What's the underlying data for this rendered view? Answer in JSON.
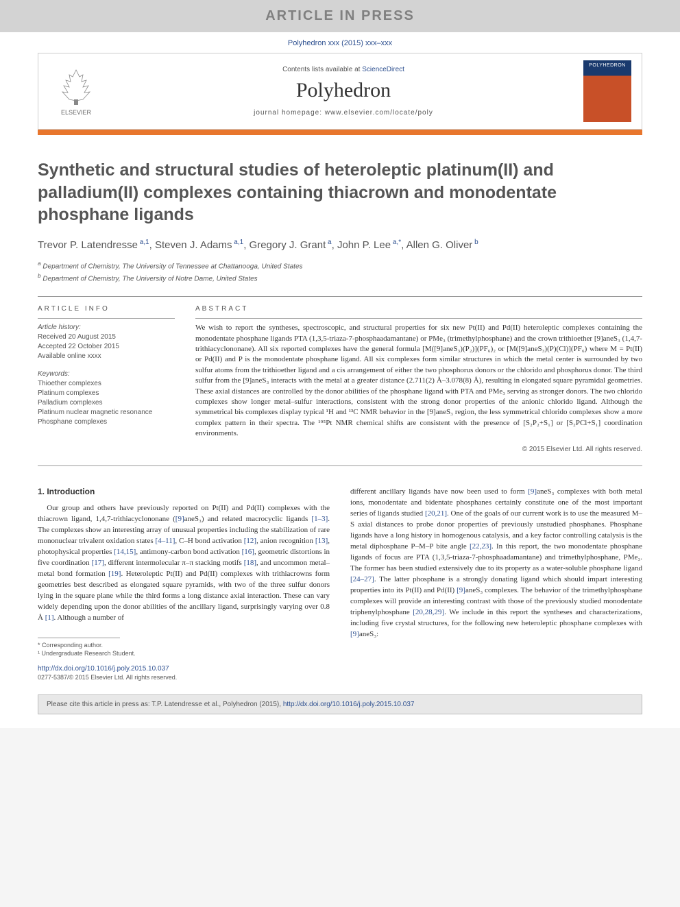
{
  "banner": {
    "text": "ARTICLE IN PRESS"
  },
  "citation_top": "Polyhedron xxx (2015) xxx–xxx",
  "header": {
    "contents_prefix": "Contents lists available at ",
    "sd": "ScienceDirect",
    "journal": "Polyhedron",
    "homepage": "journal homepage: www.elsevier.com/locate/poly",
    "elsevier": "ELSEVIER",
    "cover_title": "POLYHEDRON"
  },
  "title": "Synthetic and structural studies of heteroleptic platinum(II) and palladium(II) complexes containing thiacrown and monodentate phosphane ligands",
  "authors": [
    {
      "name": "Trevor P. Latendresse",
      "sup": "a,1"
    },
    {
      "name": "Steven J. Adams",
      "sup": "a,1"
    },
    {
      "name": "Gregory J. Grant",
      "sup": "a"
    },
    {
      "name": "John P. Lee",
      "sup": "a,*"
    },
    {
      "name": "Allen G. Oliver",
      "sup": "b"
    }
  ],
  "affiliations": [
    {
      "sup": "a",
      "text": "Department of Chemistry, The University of Tennessee at Chattanooga, United States"
    },
    {
      "sup": "b",
      "text": "Department of Chemistry, The University of Notre Dame, United States"
    }
  ],
  "info": {
    "heading": "ARTICLE INFO",
    "history_label": "Article history:",
    "history": [
      "Received 20 August 2015",
      "Accepted 22 October 2015",
      "Available online xxxx"
    ],
    "keywords_label": "Keywords:",
    "keywords": [
      "Thioether complexes",
      "Platinum complexes",
      "Palladium complexes",
      "Platinum nuclear magnetic resonance",
      "Phosphane complexes"
    ]
  },
  "abstract": {
    "heading": "ABSTRACT",
    "text": "We wish to report the syntheses, spectroscopic, and structural properties for six new Pt(II) and Pd(II) heteroleptic complexes containing the monodentate phosphane ligands PTA (1,3,5-triaza-7-phosphaadamantane) or PMe₃ (trimethylphosphane) and the crown trithioether [9]aneS₃ (1,4,7-trithiacyclononane). All six reported complexes have the general formula [M([9]aneS₃)(P₂)](PF₆)₂ or [M([9]aneS₃)(P)(Cl)](PF₆) where M = Pt(II) or Pd(II) and P is the monodentate phosphane ligand. All six complexes form similar structures in which the metal center is surrounded by two sulfur atoms from the trithioether ligand and a cis arrangement of either the two phosphorus donors or the chlorido and phosphorus donor. The third sulfur from the [9]aneS₃ interacts with the metal at a greater distance (2.711(2) Å–3.078(8) Å), resulting in elongated square pyramidal geometries. These axial distances are controlled by the donor abilities of the phosphane ligand with PTA and PMe₃ serving as stronger donors. The two chlorido complexes show longer metal–sulfur interactions, consistent with the strong donor properties of the anionic chlorido ligand. Although the symmetrical bis complexes display typical ¹H and ¹³C NMR behavior in the [9]aneS₃ region, the less symmetrical chlorido complexes show a more complex pattern in their spectra. The ¹⁹⁵Pt NMR chemical shifts are consistent with the presence of [S₂P₂+S₁] or [S₂PCl+S₁] coordination environments.",
    "copyright": "© 2015 Elsevier Ltd. All rights reserved."
  },
  "body": {
    "section_head": "1. Introduction",
    "col1": "Our group and others have previously reported on Pt(II) and Pd(II) complexes with the thiacrown ligand, 1,4,7-trithiacyclononane ([9]aneS₃) and related macrocyclic ligands [1–3]. The complexes show an interesting array of unusual properties including the stabilization of rare mononuclear trivalent oxidation states [4–11], C–H bond activation [12], anion recognition [13], photophysical properties [14,15], antimony-carbon bond activation [16], geometric distortions in five coordination [17], different intermolecular π–π stacking motifs [18], and uncommon metal–metal bond formation [19]. Heteroleptic Pt(II) and Pd(II) complexes with trithiacrowns form geometries best described as elongated square pyramids, with two of the three sulfur donors lying in the square plane while the third forms a long distance axial interaction. These can vary widely depending upon the donor abilities of the ancillary ligand, surprisingly varying over 0.8 Å [1]. Although a number of",
    "col2": "different ancillary ligands have now been used to form [9]aneS₃ complexes with both metal ions, monodentate and bidentate phosphanes certainly constitute one of the most important series of ligands studied [20,21]. One of the goals of our current work is to use the measured M–S axial distances to probe donor properties of previously unstudied phosphanes. Phosphane ligands have a long history in homogenous catalysis, and a key factor controlling catalysis is the metal diphosphane P–M–P bite angle [22,23]. In this report, the two monodentate phosphane ligands of focus are PTA (1,3,5-triaza-7-phosphaadamantane) and trimethylphosphane, PMe₃. The former has been studied extensively due to its property as a water-soluble phosphane ligand [24–27]. The latter phosphane is a strongly donating ligand which should impart interesting properties into its Pt(II) and Pd(II) [9]aneS₃ complexes. The behavior of the trimethylphosphane complexes will provide an interesting contrast with those of the previously studied monodentate triphenylphosphane [20,28,29]. We include in this report the syntheses and characterizations, including five crystal structures, for the following new heteroleptic phosphane complexes with [9]aneS₃:"
  },
  "footnotes": {
    "corr": "* Corresponding author.",
    "undergrad": "¹ Undergraduate Research Student."
  },
  "doi": "http://dx.doi.org/10.1016/j.poly.2015.10.037",
  "issn_line": "0277-5387/© 2015 Elsevier Ltd. All rights reserved.",
  "cite_box": {
    "prefix": "Please cite this article in press as: T.P. Latendresse et al., Polyhedron (2015), ",
    "link": "http://dx.doi.org/10.1016/j.poly.2015.10.037"
  },
  "refs": {
    "r1_3": "[1–3]",
    "r4_11": "[4–11]",
    "r12": "[12]",
    "r13": "[13]",
    "r14_15": "[14,15]",
    "r16": "[16]",
    "r17": "[17]",
    "r18": "[18]",
    "r19": "[19]",
    "r1": "[1]",
    "r20_21": "[20,21]",
    "r22_23": "[22,23]",
    "r24_27": "[24–27]",
    "r20_28_29": "[20,28,29]"
  }
}
